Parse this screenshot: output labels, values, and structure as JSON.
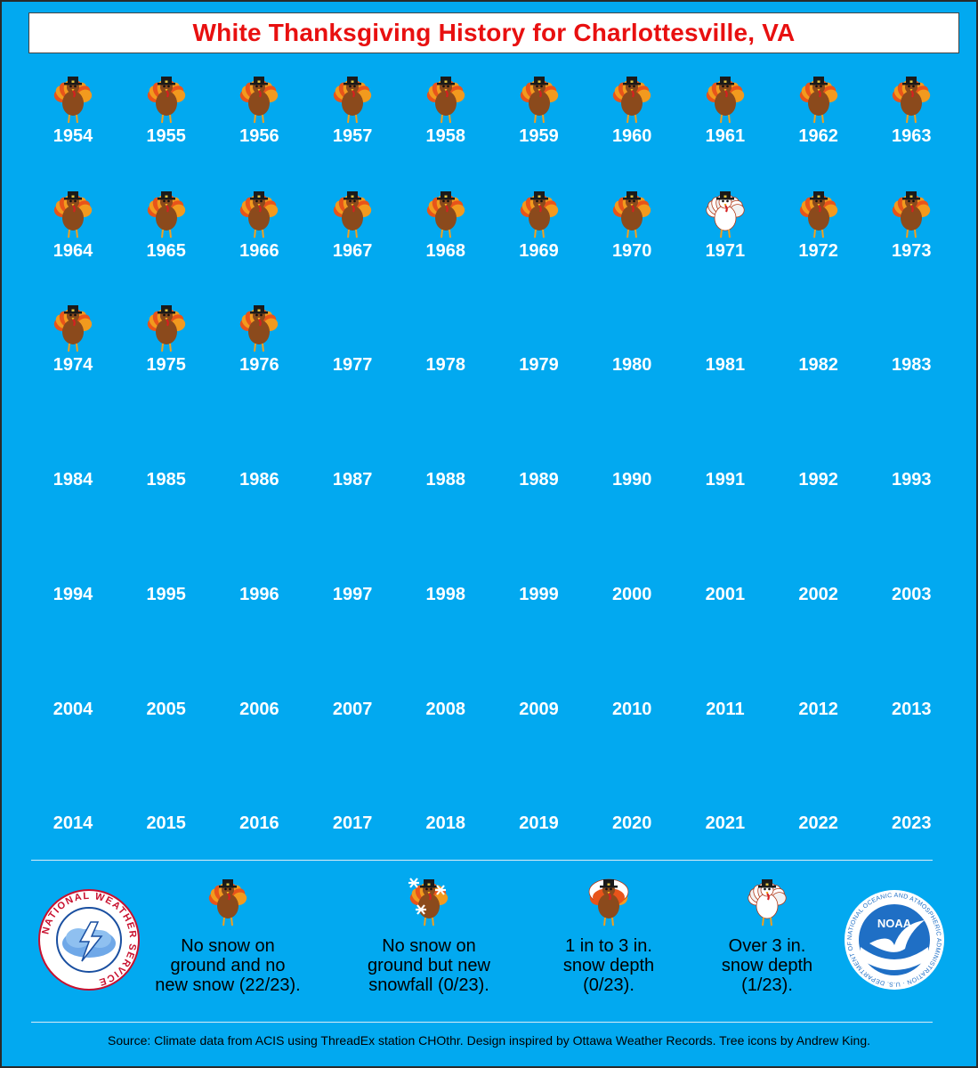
{
  "title": "White Thanksgiving History for Charlottesville, VA",
  "colors": {
    "background": "#02a9f0",
    "title_text": "#e81010",
    "year_text": "#ffffff",
    "turkey_body": "#8b4a1c",
    "turkey_feather_outer": "#e8541a",
    "turkey_feather_inner": "#f29a1e",
    "snow_turkey": "#ffffff"
  },
  "years": [
    {
      "year": "1954",
      "icon": "brown-turkey-icon"
    },
    {
      "year": "1955",
      "icon": "brown-turkey-icon"
    },
    {
      "year": "1956",
      "icon": "brown-turkey-icon"
    },
    {
      "year": "1957",
      "icon": "brown-turkey-icon"
    },
    {
      "year": "1958",
      "icon": "brown-turkey-icon"
    },
    {
      "year": "1959",
      "icon": "brown-turkey-icon"
    },
    {
      "year": "1960",
      "icon": "brown-turkey-icon"
    },
    {
      "year": "1961",
      "icon": "brown-turkey-icon"
    },
    {
      "year": "1962",
      "icon": "brown-turkey-icon"
    },
    {
      "year": "1963",
      "icon": "brown-turkey-icon"
    },
    {
      "year": "1964",
      "icon": "brown-turkey-icon"
    },
    {
      "year": "1965",
      "icon": "brown-turkey-icon"
    },
    {
      "year": "1966",
      "icon": "brown-turkey-icon"
    },
    {
      "year": "1967",
      "icon": "brown-turkey-icon"
    },
    {
      "year": "1968",
      "icon": "brown-turkey-icon"
    },
    {
      "year": "1969",
      "icon": "brown-turkey-icon"
    },
    {
      "year": "1970",
      "icon": "brown-turkey-icon"
    },
    {
      "year": "1971",
      "icon": "white-turkey-icon"
    },
    {
      "year": "1972",
      "icon": "brown-turkey-icon"
    },
    {
      "year": "1973",
      "icon": "brown-turkey-icon"
    },
    {
      "year": "1974",
      "icon": "brown-turkey-icon"
    },
    {
      "year": "1975",
      "icon": "brown-turkey-icon"
    },
    {
      "year": "1976",
      "icon": "brown-turkey-icon"
    },
    {
      "year": "1977",
      "icon": ""
    },
    {
      "year": "1978",
      "icon": ""
    },
    {
      "year": "1979",
      "icon": ""
    },
    {
      "year": "1980",
      "icon": ""
    },
    {
      "year": "1981",
      "icon": ""
    },
    {
      "year": "1982",
      "icon": ""
    },
    {
      "year": "1983",
      "icon": ""
    },
    {
      "year": "1984",
      "icon": ""
    },
    {
      "year": "1985",
      "icon": ""
    },
    {
      "year": "1986",
      "icon": ""
    },
    {
      "year": "1987",
      "icon": ""
    },
    {
      "year": "1988",
      "icon": ""
    },
    {
      "year": "1989",
      "icon": ""
    },
    {
      "year": "1990",
      "icon": ""
    },
    {
      "year": "1991",
      "icon": ""
    },
    {
      "year": "1992",
      "icon": ""
    },
    {
      "year": "1993",
      "icon": ""
    },
    {
      "year": "1994",
      "icon": ""
    },
    {
      "year": "1995",
      "icon": ""
    },
    {
      "year": "1996",
      "icon": ""
    },
    {
      "year": "1997",
      "icon": ""
    },
    {
      "year": "1998",
      "icon": ""
    },
    {
      "year": "1999",
      "icon": ""
    },
    {
      "year": "2000",
      "icon": ""
    },
    {
      "year": "2001",
      "icon": ""
    },
    {
      "year": "2002",
      "icon": ""
    },
    {
      "year": "2003",
      "icon": ""
    },
    {
      "year": "2004",
      "icon": ""
    },
    {
      "year": "2005",
      "icon": ""
    },
    {
      "year": "2006",
      "icon": ""
    },
    {
      "year": "2007",
      "icon": ""
    },
    {
      "year": "2008",
      "icon": ""
    },
    {
      "year": "2009",
      "icon": ""
    },
    {
      "year": "2010",
      "icon": ""
    },
    {
      "year": "2011",
      "icon": ""
    },
    {
      "year": "2012",
      "icon": ""
    },
    {
      "year": "2013",
      "icon": ""
    },
    {
      "year": "2014",
      "icon": ""
    },
    {
      "year": "2015",
      "icon": ""
    },
    {
      "year": "2016",
      "icon": ""
    },
    {
      "year": "2017",
      "icon": ""
    },
    {
      "year": "2018",
      "icon": ""
    },
    {
      "year": "2019",
      "icon": ""
    },
    {
      "year": "2020",
      "icon": ""
    },
    {
      "year": "2021",
      "icon": ""
    },
    {
      "year": "2022",
      "icon": ""
    },
    {
      "year": "2023",
      "icon": ""
    }
  ],
  "legend": [
    {
      "icon": "brown-turkey-icon",
      "label_lines": [
        "No snow on",
        "ground and no",
        "new snow (22/23)."
      ]
    },
    {
      "icon": "snowflake-turkey-icon",
      "label_lines": [
        "No snow on",
        "ground but new",
        "snowfall (0/23)."
      ]
    },
    {
      "icon": "partial-white-turkey-icon",
      "label_lines": [
        "1 in to 3 in.",
        "snow depth",
        "(0/23)."
      ]
    },
    {
      "icon": "white-turkey-icon",
      "label_lines": [
        "Over 3 in.",
        "snow depth",
        "(1/23)."
      ]
    }
  ],
  "logos": {
    "nws_text": "NATIONAL WEATHER SERVICE",
    "noaa_center": "NOAA",
    "noaa_ring": "NATIONAL OCEANIC AND ATMOSPHERIC ADMINISTRATION · U.S. DEPARTMENT OF COMMERCE"
  },
  "source": "Source: Climate data from ACIS using ThreadEx station CHOthr. Design inspired by Ottawa Weather Records. Tree icons by Andrew King."
}
